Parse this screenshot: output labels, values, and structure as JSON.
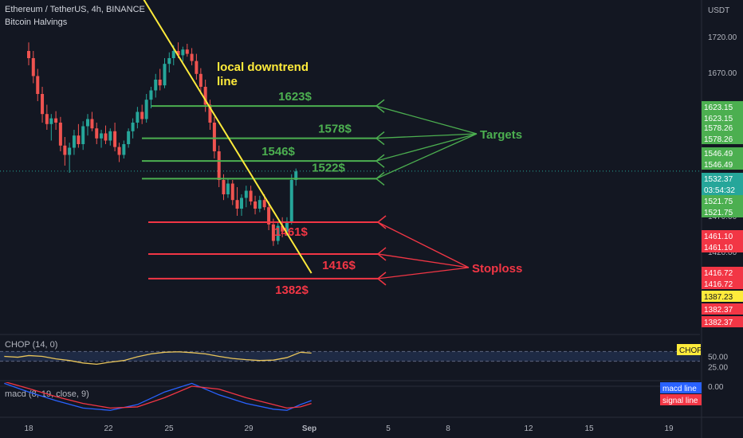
{
  "header": {
    "symbol_line": "Ethereum / TetherUS, 4h, BINANCE",
    "indicator": "Bitcoin Halvings"
  },
  "colors": {
    "background": "#131722",
    "up": "#26a69a",
    "down": "#ef5350",
    "target": "#4caf50",
    "stoploss": "#f23645",
    "trendline": "#ffeb3b",
    "chop_line": "#e8c45a",
    "macd_line": "#2962ff",
    "signal_line": "#f23645"
  },
  "chart_data": [
    {
      "type": "candlestick",
      "currency_label": "USDT",
      "ylim": [
        1360,
        1760
      ],
      "y_ticks": [
        1720,
        1670,
        1470,
        1420
      ],
      "y_tick_labels": [
        "1720.00",
        "1670.00",
        "1470.00",
        "1420.00"
      ],
      "x_ticks": [
        "18",
        "22",
        "25",
        "29",
        "Sep",
        "5",
        "8",
        "12",
        "15",
        "19"
      ],
      "last_price": "1532.37",
      "countdown": "03:54:32",
      "price_tags": [
        {
          "label": "1623.15",
          "value": 1623.15,
          "kind": "target"
        },
        {
          "label": "1623.15",
          "value": 1623.15,
          "kind": "target"
        },
        {
          "label": "1578.26",
          "value": 1578.26,
          "kind": "target"
        },
        {
          "label": "1578.26",
          "value": 1578.26,
          "kind": "target"
        },
        {
          "label": "1546.49",
          "value": 1546.49,
          "kind": "target"
        },
        {
          "label": "1546.49",
          "value": 1546.49,
          "kind": "target"
        },
        {
          "label": "1521.75",
          "value": 1521.75,
          "kind": "target"
        },
        {
          "label": "1521.75",
          "value": 1521.75,
          "kind": "target"
        },
        {
          "label": "1461.10",
          "value": 1461.1,
          "kind": "stop"
        },
        {
          "label": "1461.10",
          "value": 1461.1,
          "kind": "stop"
        },
        {
          "label": "1416.72",
          "value": 1416.72,
          "kind": "stop"
        },
        {
          "label": "1416.72",
          "value": 1416.72,
          "kind": "stop"
        },
        {
          "label": "1387.23",
          "value": 1387.23,
          "kind": "yellow"
        },
        {
          "label": "1382.37",
          "value": 1382.37,
          "kind": "stop"
        },
        {
          "label": "1382.37",
          "value": 1382.37,
          "kind": "stop"
        }
      ],
      "levels": [
        {
          "label": "1623$",
          "value": 1623.15,
          "kind": "target"
        },
        {
          "label": "1578$",
          "value": 1578.26,
          "kind": "target"
        },
        {
          "label": "1546$",
          "value": 1546.49,
          "kind": "target"
        },
        {
          "label": "1522$",
          "value": 1521.75,
          "kind": "target"
        },
        {
          "label": "1461$",
          "value": 1461.1,
          "kind": "stop"
        },
        {
          "label": "1416$",
          "value": 1416.72,
          "kind": "stop"
        },
        {
          "label": "1382$",
          "value": 1382.37,
          "kind": "stop"
        }
      ],
      "annotations": {
        "trendline_label_1": "local downtrend",
        "trendline_label_2": "line",
        "targets": "Targets",
        "stoploss": "Stoploss"
      },
      "candles": [
        {
          "d": 0,
          "o": 1700,
          "h": 1712,
          "l": 1680,
          "c": 1690
        },
        {
          "d": 0.17,
          "o": 1690,
          "h": 1700,
          "l": 1655,
          "c": 1665
        },
        {
          "d": 0.33,
          "o": 1665,
          "h": 1675,
          "l": 1630,
          "c": 1640
        },
        {
          "d": 0.5,
          "o": 1640,
          "h": 1650,
          "l": 1600,
          "c": 1612
        },
        {
          "d": 0.67,
          "o": 1612,
          "h": 1625,
          "l": 1590,
          "c": 1598
        },
        {
          "d": 0.83,
          "o": 1598,
          "h": 1612,
          "l": 1575,
          "c": 1606
        },
        {
          "d": 1,
          "o": 1606,
          "h": 1616,
          "l": 1590,
          "c": 1600
        },
        {
          "d": 1.17,
          "o": 1600,
          "h": 1608,
          "l": 1560,
          "c": 1568
        },
        {
          "d": 1.33,
          "o": 1568,
          "h": 1580,
          "l": 1540,
          "c": 1555
        },
        {
          "d": 1.5,
          "o": 1555,
          "h": 1572,
          "l": 1530,
          "c": 1565
        },
        {
          "d": 1.67,
          "o": 1565,
          "h": 1590,
          "l": 1555,
          "c": 1582
        },
        {
          "d": 1.83,
          "o": 1582,
          "h": 1598,
          "l": 1565,
          "c": 1570
        },
        {
          "d": 2,
          "o": 1570,
          "h": 1602,
          "l": 1562,
          "c": 1595
        },
        {
          "d": 2.17,
          "o": 1595,
          "h": 1612,
          "l": 1582,
          "c": 1605
        },
        {
          "d": 2.33,
          "o": 1605,
          "h": 1615,
          "l": 1588,
          "c": 1592
        },
        {
          "d": 2.5,
          "o": 1592,
          "h": 1600,
          "l": 1570,
          "c": 1578
        },
        {
          "d": 2.67,
          "o": 1578,
          "h": 1590,
          "l": 1565,
          "c": 1585
        },
        {
          "d": 2.83,
          "o": 1585,
          "h": 1596,
          "l": 1570,
          "c": 1575
        },
        {
          "d": 3,
          "o": 1575,
          "h": 1592,
          "l": 1568,
          "c": 1588
        },
        {
          "d": 3.17,
          "o": 1588,
          "h": 1600,
          "l": 1560,
          "c": 1566
        },
        {
          "d": 3.33,
          "o": 1566,
          "h": 1572,
          "l": 1545,
          "c": 1555
        },
        {
          "d": 3.5,
          "o": 1555,
          "h": 1575,
          "l": 1550,
          "c": 1570
        },
        {
          "d": 3.67,
          "o": 1570,
          "h": 1592,
          "l": 1565,
          "c": 1588
        },
        {
          "d": 3.83,
          "o": 1588,
          "h": 1606,
          "l": 1578,
          "c": 1600
        },
        {
          "d": 4,
          "o": 1600,
          "h": 1622,
          "l": 1592,
          "c": 1615
        },
        {
          "d": 4.17,
          "o": 1615,
          "h": 1625,
          "l": 1598,
          "c": 1605
        },
        {
          "d": 4.33,
          "o": 1605,
          "h": 1640,
          "l": 1600,
          "c": 1632
        },
        {
          "d": 4.5,
          "o": 1632,
          "h": 1650,
          "l": 1620,
          "c": 1645
        },
        {
          "d": 4.67,
          "o": 1645,
          "h": 1668,
          "l": 1635,
          "c": 1660
        },
        {
          "d": 4.83,
          "o": 1660,
          "h": 1675,
          "l": 1645,
          "c": 1652
        },
        {
          "d": 5,
          "o": 1652,
          "h": 1690,
          "l": 1648,
          "c": 1682
        },
        {
          "d": 5.17,
          "o": 1682,
          "h": 1698,
          "l": 1670,
          "c": 1690
        },
        {
          "d": 5.33,
          "o": 1690,
          "h": 1708,
          "l": 1680,
          "c": 1700
        },
        {
          "d": 5.5,
          "o": 1700,
          "h": 1712,
          "l": 1690,
          "c": 1694
        },
        {
          "d": 5.67,
          "o": 1694,
          "h": 1706,
          "l": 1685,
          "c": 1702
        },
        {
          "d": 5.83,
          "o": 1702,
          "h": 1710,
          "l": 1692,
          "c": 1696
        },
        {
          "d": 6,
          "o": 1696,
          "h": 1704,
          "l": 1680,
          "c": 1686
        },
        {
          "d": 6.17,
          "o": 1686,
          "h": 1696,
          "l": 1660,
          "c": 1668
        },
        {
          "d": 6.33,
          "o": 1668,
          "h": 1676,
          "l": 1640,
          "c": 1650
        },
        {
          "d": 6.5,
          "o": 1650,
          "h": 1660,
          "l": 1615,
          "c": 1625
        },
        {
          "d": 6.67,
          "o": 1625,
          "h": 1632,
          "l": 1590,
          "c": 1600
        },
        {
          "d": 6.83,
          "o": 1600,
          "h": 1608,
          "l": 1550,
          "c": 1560
        },
        {
          "d": 7,
          "o": 1560,
          "h": 1568,
          "l": 1510,
          "c": 1520
        },
        {
          "d": 7.17,
          "o": 1520,
          "h": 1528,
          "l": 1492,
          "c": 1500
        },
        {
          "d": 7.33,
          "o": 1500,
          "h": 1522,
          "l": 1495,
          "c": 1515
        },
        {
          "d": 7.5,
          "o": 1515,
          "h": 1520,
          "l": 1485,
          "c": 1492
        },
        {
          "d": 7.67,
          "o": 1492,
          "h": 1510,
          "l": 1470,
          "c": 1480
        },
        {
          "d": 7.83,
          "o": 1480,
          "h": 1500,
          "l": 1470,
          "c": 1495
        },
        {
          "d": 8,
          "o": 1495,
          "h": 1512,
          "l": 1482,
          "c": 1505
        },
        {
          "d": 8.17,
          "o": 1505,
          "h": 1512,
          "l": 1485,
          "c": 1490
        },
        {
          "d": 8.33,
          "o": 1490,
          "h": 1498,
          "l": 1472,
          "c": 1480
        },
        {
          "d": 8.5,
          "o": 1480,
          "h": 1498,
          "l": 1475,
          "c": 1492
        },
        {
          "d": 8.67,
          "o": 1492,
          "h": 1500,
          "l": 1478,
          "c": 1482
        },
        {
          "d": 8.83,
          "o": 1482,
          "h": 1490,
          "l": 1450,
          "c": 1458
        },
        {
          "d": 9,
          "o": 1458,
          "h": 1466,
          "l": 1428,
          "c": 1435
        },
        {
          "d": 9.17,
          "o": 1435,
          "h": 1462,
          "l": 1430,
          "c": 1456
        },
        {
          "d": 9.33,
          "o": 1456,
          "h": 1468,
          "l": 1440,
          "c": 1448
        },
        {
          "d": 9.5,
          "o": 1448,
          "h": 1468,
          "l": 1442,
          "c": 1462
        },
        {
          "d": 9.67,
          "o": 1462,
          "h": 1528,
          "l": 1458,
          "c": 1520
        },
        {
          "d": 9.83,
          "o": 1520,
          "h": 1536,
          "l": 1512,
          "c": 1532
        }
      ],
      "trendline": [
        {
          "d": 4.1,
          "v": 1780
        },
        {
          "d": 10.4,
          "v": 1390
        }
      ]
    },
    {
      "type": "line",
      "title": "CHOP (14, 0)",
      "legend_tag": "CHOP",
      "ylim": [
        20,
        75
      ],
      "band": [
        38.2,
        61.8
      ],
      "y_ticks": [
        50,
        25
      ],
      "y_tick_labels": [
        "50.00",
        "25.00"
      ],
      "series": [
        {
          "name": "CHOP",
          "x": [
            -0.9,
            -0.4,
            0,
            0.5,
            1,
            1.5,
            2,
            2.5,
            3,
            3.5,
            4,
            4.5,
            5,
            5.5,
            6,
            6.5,
            7,
            7.5,
            8,
            8.5,
            9,
            9.5,
            10,
            10.4
          ],
          "y": [
            50,
            48,
            52,
            50,
            44,
            40,
            34,
            31,
            36,
            40,
            49,
            56,
            60,
            61,
            59,
            56,
            50,
            45,
            42,
            40,
            41,
            47,
            60,
            58
          ]
        }
      ]
    },
    {
      "type": "line",
      "title": "macd (8, 19, close, 9)",
      "y_ticks": [
        0
      ],
      "y_tick_labels": [
        "0.00"
      ],
      "series": [
        {
          "name": "macd line",
          "x": [
            -0.9,
            0,
            1,
            2,
            3,
            4,
            5,
            6,
            7,
            8,
            9,
            9.5,
            10,
            10.4
          ],
          "y": [
            5,
            -10,
            -25,
            -38,
            -42,
            -32,
            -10,
            5,
            -15,
            -30,
            -40,
            -42,
            -32,
            -25
          ]
        },
        {
          "name": "signal line",
          "x": [
            -0.9,
            0,
            1,
            2,
            3,
            4,
            5,
            6,
            7,
            8,
            9,
            9.5,
            10,
            10.4
          ],
          "y": [
            8,
            -4,
            -18,
            -30,
            -38,
            -36,
            -20,
            0,
            -5,
            -20,
            -32,
            -38,
            -36,
            -30
          ]
        }
      ]
    }
  ]
}
